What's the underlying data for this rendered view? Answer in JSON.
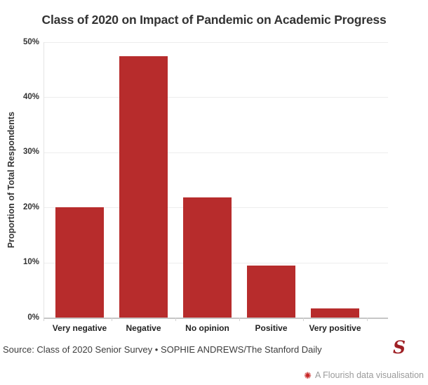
{
  "title": "Class of 2020 on Impact of Pandemic on Academic Progress",
  "chart_data": {
    "type": "bar",
    "title": "Class of 2020 on Impact of Pandemic on Academic Progress",
    "categories": [
      "Very negative",
      "Negative",
      "No opinion",
      "Positive",
      "Very positive"
    ],
    "values": [
      20,
      47.4,
      21.8,
      9.4,
      1.7
    ],
    "xlabel": "",
    "ylabel": "Proportion of Total Respondents",
    "ylim": [
      0,
      50
    ],
    "ytick_step": 10,
    "ytick_labels": [
      "0%",
      "10%",
      "20%",
      "30%",
      "40%",
      "50%"
    ],
    "grid": true,
    "legend": false,
    "bar_color": "#b72c2c"
  },
  "footer": {
    "source": "Source: Class of 2020 Senior Survey • SOPHIE ANDREWS/The Stanford Daily",
    "stanford_logo_letter": "S",
    "stanford_logo_color": "#9e1f24",
    "flourish_label": "A Flourish data visualisation",
    "flourish_text_color": "#9b9b9b",
    "flourish_icon_color": "#c62323"
  }
}
